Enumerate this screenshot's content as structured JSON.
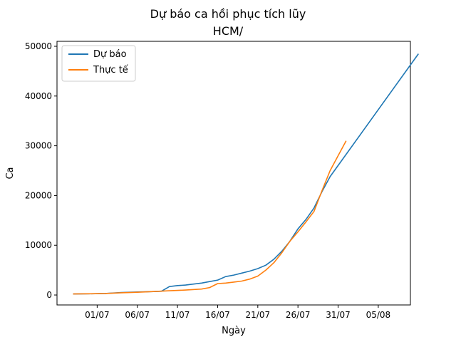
{
  "chart_data": {
    "type": "line",
    "title": "Dự báo ca hồi phục tích lũy",
    "subtitle": "HCM/",
    "xlabel": "Ngày",
    "ylabel": "Ca",
    "x_ticks": [
      "01/07",
      "06/07",
      "11/07",
      "16/07",
      "21/07",
      "26/07",
      "31/07",
      "05/08"
    ],
    "y_ticks": [
      "0",
      "10000",
      "20000",
      "30000",
      "40000",
      "50000"
    ],
    "ylim": [
      -2000,
      51000
    ],
    "xlim": [
      "2021-06-26",
      "2021-08-09"
    ],
    "legend_position": "top-left",
    "series": [
      {
        "name": "Dự báo",
        "color": "#1f77b4",
        "points": [
          [
            "2021-06-28",
            200
          ],
          [
            "2021-06-30",
            250
          ],
          [
            "2021-07-02",
            300
          ],
          [
            "2021-07-04",
            500
          ],
          [
            "2021-07-06",
            600
          ],
          [
            "2021-07-08",
            700
          ],
          [
            "2021-07-09",
            750
          ],
          [
            "2021-07-10",
            1700
          ],
          [
            "2021-07-11",
            1900
          ],
          [
            "2021-07-12",
            2000
          ],
          [
            "2021-07-13",
            2200
          ],
          [
            "2021-07-14",
            2400
          ],
          [
            "2021-07-15",
            2700
          ],
          [
            "2021-07-16",
            3000
          ],
          [
            "2021-07-17",
            3700
          ],
          [
            "2021-07-18",
            4000
          ],
          [
            "2021-07-19",
            4400
          ],
          [
            "2021-07-20",
            4800
          ],
          [
            "2021-07-21",
            5300
          ],
          [
            "2021-07-22",
            6000
          ],
          [
            "2021-07-23",
            7200
          ],
          [
            "2021-07-24",
            8800
          ],
          [
            "2021-07-25",
            10800
          ],
          [
            "2021-07-26",
            13300
          ],
          [
            "2021-07-27",
            15200
          ],
          [
            "2021-07-28",
            17500
          ],
          [
            "2021-07-29",
            20800
          ],
          [
            "2021-07-30",
            23800
          ],
          [
            "2021-08-10",
            48500
          ]
        ]
      },
      {
        "name": "Thực tế",
        "color": "#ff7f0e",
        "points": [
          [
            "2021-06-28",
            200
          ],
          [
            "2021-06-30",
            250
          ],
          [
            "2021-07-02",
            300
          ],
          [
            "2021-07-04",
            450
          ],
          [
            "2021-07-06",
            550
          ],
          [
            "2021-07-08",
            700
          ],
          [
            "2021-07-10",
            850
          ],
          [
            "2021-07-12",
            1000
          ],
          [
            "2021-07-14",
            1200
          ],
          [
            "2021-07-15",
            1500
          ],
          [
            "2021-07-16",
            2300
          ],
          [
            "2021-07-17",
            2400
          ],
          [
            "2021-07-18",
            2600
          ],
          [
            "2021-07-19",
            2800
          ],
          [
            "2021-07-20",
            3200
          ],
          [
            "2021-07-21",
            3800
          ],
          [
            "2021-07-22",
            5000
          ],
          [
            "2021-07-23",
            6500
          ],
          [
            "2021-07-24",
            8500
          ],
          [
            "2021-07-25",
            10800
          ],
          [
            "2021-07-26",
            12700
          ],
          [
            "2021-07-27",
            14700
          ],
          [
            "2021-07-28",
            16800
          ],
          [
            "2021-07-29",
            21000
          ],
          [
            "2021-07-30",
            25000
          ],
          [
            "2021-07-31",
            28000
          ],
          [
            "2021-08-01",
            31000
          ]
        ]
      }
    ]
  }
}
